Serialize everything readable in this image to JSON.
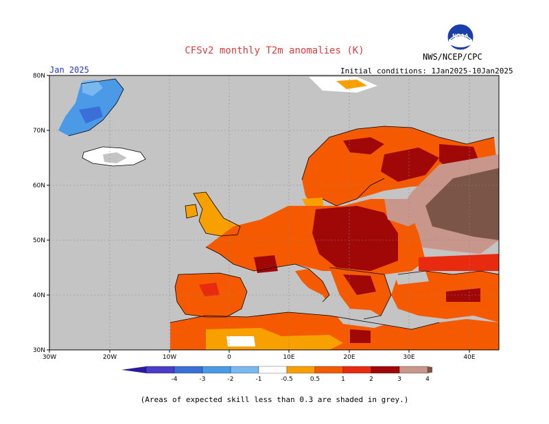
{
  "header": {
    "title": "CFSv2 monthly T2m anomalies (K)",
    "org": "NWS/NCEP/CPC",
    "logo_text": "NOAA",
    "month": "Jan 2025",
    "initial_conditions": "Initial conditions: 1Jan2025-10Jan2025"
  },
  "map": {
    "lat_labels": [
      "80N",
      "70N",
      "60N",
      "50N",
      "40N",
      "30N"
    ],
    "lon_labels": [
      "30W",
      "20W",
      "10W",
      "0",
      "10E",
      "20E",
      "30E",
      "40E"
    ],
    "colors": {
      "grey": "#c4c4c4",
      "land_outline": "#000000"
    }
  },
  "colorbar": {
    "labels": [
      "-4",
      "-3",
      "-2",
      "-1",
      "-0.5",
      "0.5",
      "1",
      "2",
      "3",
      "4"
    ],
    "colors": [
      "#2b1a9c",
      "#4a3ec8",
      "#3a6fd8",
      "#4a9ae8",
      "#7ab8f0",
      "#ffffff",
      "#f7a000",
      "#f55a00",
      "#e82a10",
      "#a00808",
      "#c8968a",
      "#7a5548"
    ]
  },
  "note": "(Areas of expected skill less than 0.3 are shaded in grey.)"
}
